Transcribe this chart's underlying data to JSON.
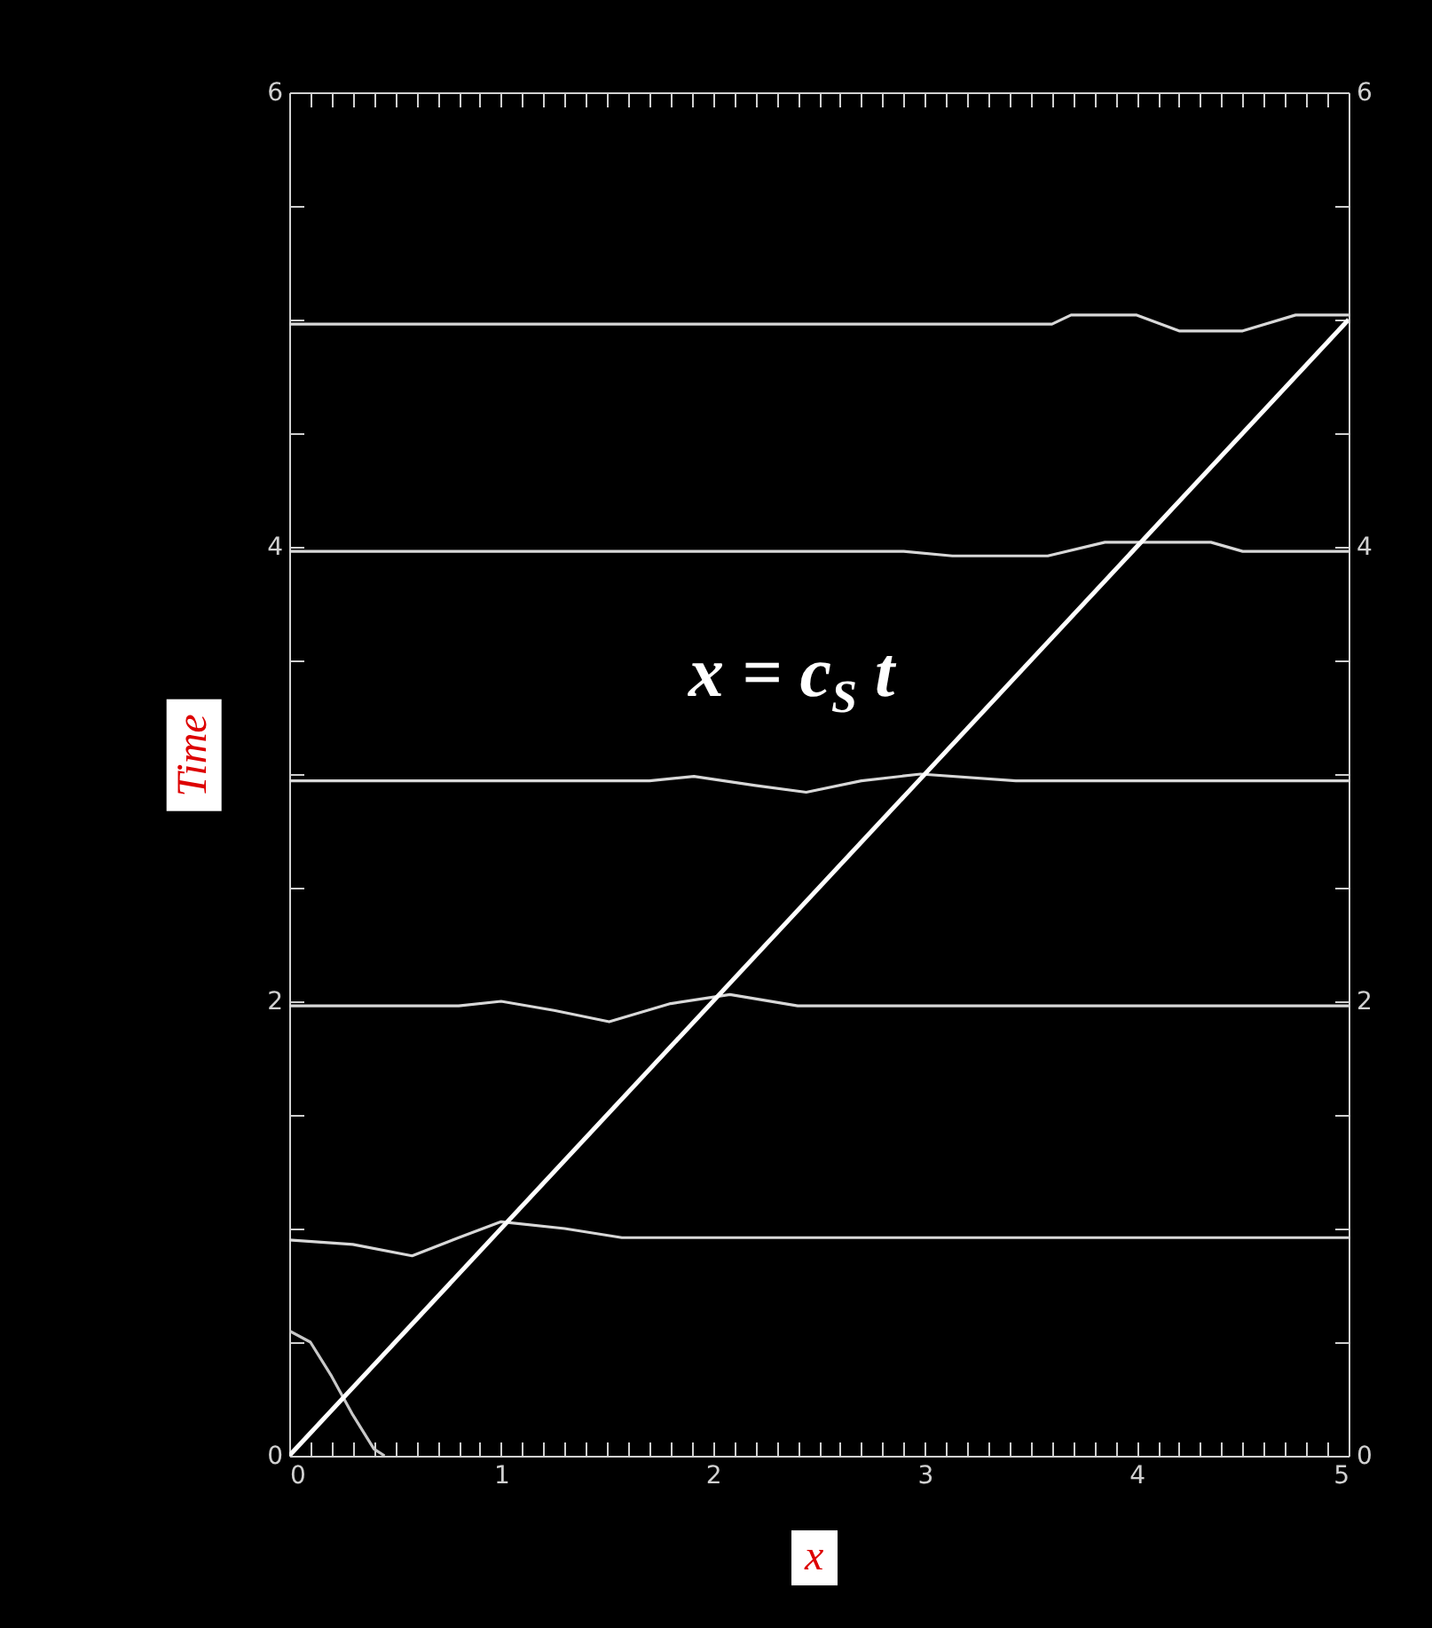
{
  "chart_data": {
    "type": "line",
    "xlabel": "x",
    "ylabel": "Time",
    "annotations": [
      "x = c$_{S}$ t"
    ],
    "xlim": [
      0,
      5
    ],
    "ylim": [
      0,
      6
    ],
    "y2lim": [
      0,
      6
    ],
    "xticks": [
      0,
      {
        "value": 0.1,
        "label": null
      },
      {
        "value": 0.2,
        "label": null
      },
      {
        "value": 0.3,
        "label": null
      },
      {
        "value": 0.4,
        "label": null
      },
      {
        "value": 0.5,
        "label": null
      },
      {
        "value": 0.6,
        "label": null
      },
      {
        "value": 0.7,
        "label": null
      },
      {
        "value": 0.8,
        "label": null
      },
      {
        "value": 0.9,
        "label": null
      },
      1,
      {
        "value": 1.1,
        "label": null
      },
      {
        "value": 1.2,
        "label": null
      },
      {
        "value": 1.3,
        "label": null
      },
      {
        "value": 1.4,
        "label": null
      },
      {
        "value": 1.5,
        "label": null
      },
      {
        "value": 1.6,
        "label": null
      },
      {
        "value": 1.7,
        "label": null
      },
      {
        "value": 1.8,
        "label": null
      },
      {
        "value": 1.9,
        "label": null
      },
      2,
      {
        "value": 2.1,
        "label": null
      },
      {
        "value": 2.2,
        "label": null
      },
      {
        "value": 2.3,
        "label": null
      },
      {
        "value": 2.4,
        "label": null
      },
      {
        "value": 2.5,
        "label": null
      },
      {
        "value": 2.6,
        "label": null
      },
      {
        "value": 2.7,
        "label": null
      },
      {
        "value": 2.8,
        "label": null
      },
      {
        "value": 2.9,
        "label": null
      },
      3,
      {
        "value": 3.1,
        "label": null
      },
      {
        "value": 3.2,
        "label": null
      },
      {
        "value": 3.3,
        "label": null
      },
      {
        "value": 3.4,
        "label": null
      },
      {
        "value": 3.5,
        "label": null
      },
      {
        "value": 3.6,
        "label": null
      },
      {
        "value": 3.7,
        "label": null
      },
      {
        "value": 3.8,
        "label": null
      },
      {
        "value": 3.9,
        "label": null
      },
      4,
      {
        "value": 4.1,
        "label": null
      },
      {
        "value": 4.2,
        "label": null
      },
      {
        "value": 4.3,
        "label": null
      },
      {
        "value": 4.4,
        "label": null
      },
      {
        "value": 4.5,
        "label": null
      },
      {
        "value": 4.6,
        "label": null
      },
      {
        "value": 4.7,
        "label": null
      },
      {
        "value": 4.8,
        "label": null
      },
      {
        "value": 4.9,
        "label": null
      },
      5
    ],
    "yticks": [
      0,
      {
        "value": 0.5,
        "label": null
      },
      {
        "value": 1,
        "label": null
      },
      {
        "value": 1.5,
        "label": null
      },
      2,
      {
        "value": 2.5,
        "label": null
      },
      {
        "value": 3,
        "label": null
      },
      {
        "value": 3.5,
        "label": null
      },
      4,
      {
        "value": 4.5,
        "label": null
      },
      {
        "value": 5,
        "label": null
      },
      {
        "value": 5.5,
        "label": null
      },
      6
    ],
    "y2ticks": [
      0,
      {
        "value": 0.5,
        "label": null
      },
      {
        "value": 1,
        "label": null
      },
      {
        "value": 1.5,
        "label": null
      },
      2,
      {
        "value": 2.5,
        "label": null
      },
      {
        "value": 3,
        "label": null
      },
      {
        "value": 3.5,
        "label": null
      },
      4,
      {
        "value": 4.5,
        "label": null
      },
      {
        "value": 5,
        "label": null
      },
      {
        "value": 5.5,
        "label": null
      },
      6
    ],
    "grid": false,
    "series": [
      {
        "color": "#c8c8c8",
        "x": [
          0,
          0.1,
          0.2,
          0.3,
          0.4,
          0.45
        ],
        "values": [
          0.55,
          0.5,
          0.35,
          0.18,
          0.03,
          0
        ]
      },
      {
        "color": "#d8d8d8",
        "x": [
          0,
          0.3,
          0.58,
          0.8,
          1.0,
          1.3,
          1.57,
          5
        ],
        "values": [
          0.95,
          0.93,
          0.88,
          0.96,
          1.03,
          1.0,
          0.96,
          0.96
        ]
      },
      {
        "color": "#d8d8d8",
        "x": [
          0,
          0.8,
          1.0,
          1.25,
          1.51,
          1.8,
          2.08,
          2.4,
          5
        ],
        "values": [
          1.98,
          1.98,
          2.0,
          1.96,
          1.91,
          1.99,
          2.03,
          1.98,
          1.98
        ]
      },
      {
        "color": "#d8d8d8",
        "x": [
          0,
          1.7,
          1.91,
          2.2,
          2.44,
          2.7,
          2.98,
          3.43,
          5
        ],
        "values": [
          2.97,
          2.97,
          2.99,
          2.95,
          2.92,
          2.97,
          3.0,
          2.97,
          2.97
        ]
      },
      {
        "color": "#d8d8d8",
        "x": [
          0,
          2.9,
          3.13,
          3.58,
          3.85,
          4.35,
          4.5,
          5
        ],
        "values": [
          3.98,
          3.98,
          3.96,
          3.96,
          4.02,
          4.02,
          3.98,
          3.98
        ]
      },
      {
        "color": "#d8d8d8",
        "x": [
          0,
          3.6,
          3.69,
          4.0,
          4.2,
          4.5,
          4.75,
          5
        ],
        "values": [
          4.98,
          4.98,
          5.02,
          5.02,
          4.95,
          4.95,
          5.02,
          5.02
        ]
      },
      {
        "color": "#ffffff",
        "x": [
          0,
          5
        ],
        "values": [
          0,
          5
        ]
      }
    ]
  }
}
